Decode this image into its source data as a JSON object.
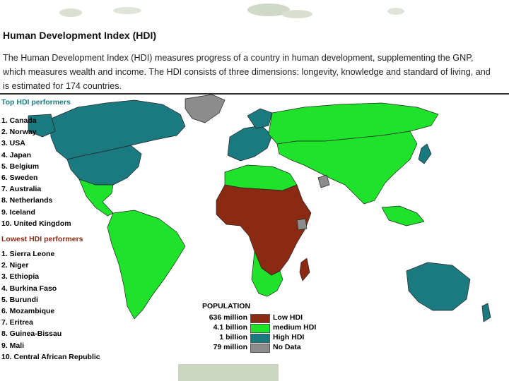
{
  "header": {
    "title": "Human Development Index (HDI)",
    "description": "The Human Development Index (HDI) measures progress of a country in human development, supplementing the GNP, which measures wealth and income. The HDI consists of three dimensions: longevity, knowledge and standard of living, and is estimated for 174 countries."
  },
  "colors": {
    "low": "#8b2a12",
    "medium": "#1fe32a",
    "high": "#1a7a80",
    "nodata": "#8c8c8c",
    "top_heading": "#1a7a80",
    "lowest_heading": "#8b2a12"
  },
  "top": {
    "heading": "Top HDI performers",
    "items": [
      "1.  Canada",
      "2.  Norway",
      "3.  USA",
      "4.  Japan",
      "5.  Belgium",
      "6.  Sweden",
      "7.  Australia",
      "8.  Netherlands",
      "9.  Iceland",
      "10. United Kingdom"
    ]
  },
  "lowest": {
    "heading": "Lowest HDI performers",
    "items": [
      "1.  Sierra Leone",
      "2.  Niger",
      "3.  Ethiopia",
      "4.  Burkina Faso",
      "5.  Burundi",
      "6.  Mozambique",
      "7.  Eritrea",
      "8.  Guinea-Bissau",
      "9.  Mali",
      "10. Central African Republic"
    ]
  },
  "legend": {
    "title": "POPULATION",
    "rows": [
      {
        "population": "636 million",
        "label": "Low HDI",
        "color": "#8b2a12"
      },
      {
        "population": "4.1 billion",
        "label": "medium HDI",
        "color": "#1fe32a"
      },
      {
        "population": "1 billion",
        "label": "High HDI",
        "color": "#1a7a80"
      },
      {
        "population": "79 million",
        "label": "No Data",
        "color": "#8c8c8c"
      }
    ]
  }
}
